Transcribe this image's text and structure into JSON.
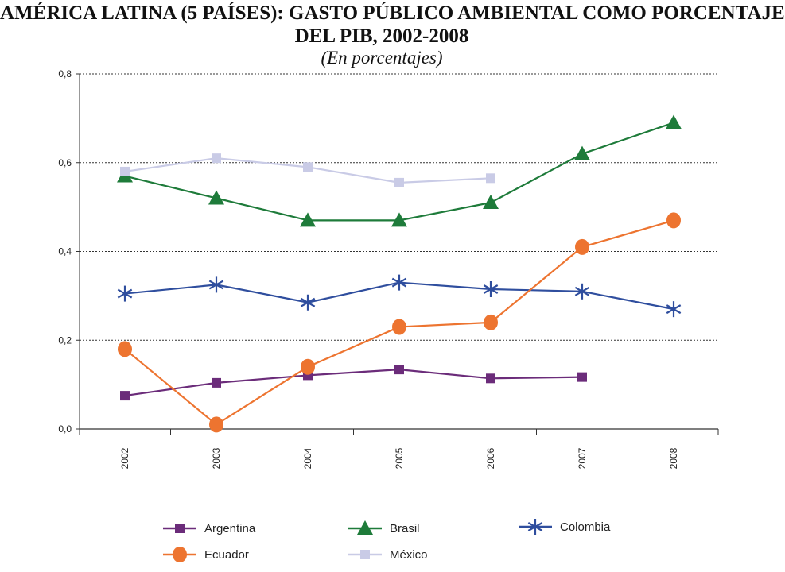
{
  "title": {
    "line1": "AMÉRICA LATINA (5 PAÍSES): GASTO PÚBLICO AMBIENTAL COMO PORCENTAJE",
    "line2": "DEL PIB, 2002-2008",
    "subtitle": "(En porcentajes)"
  },
  "chart_data": {
    "type": "line",
    "categories": [
      "2002",
      "2003",
      "2004",
      "2005",
      "2006",
      "2007",
      "2008"
    ],
    "ylim": [
      0,
      0.8
    ],
    "yticks": [
      0,
      0.2,
      0.4,
      0.6,
      0.8
    ],
    "ytick_labels": [
      "0,0",
      "0,2",
      "0,4",
      "0,6",
      "0,8"
    ],
    "grid": true,
    "grid_style": "dotted horizontal",
    "legend_position": "bottom",
    "series": [
      {
        "name": "Argentina",
        "color": "#6B2C7A",
        "marker": "square",
        "values": [
          0.075,
          0.104,
          0.121,
          0.134,
          0.114,
          0.117,
          null
        ]
      },
      {
        "name": "Brasil",
        "color": "#1E7B3A",
        "marker": "triangle",
        "values": [
          0.57,
          0.52,
          0.47,
          0.47,
          0.51,
          0.62,
          0.69
        ]
      },
      {
        "name": "Colombia",
        "color": "#2F4E9E",
        "marker": "asterisk",
        "values": [
          0.305,
          0.325,
          0.285,
          0.33,
          0.315,
          0.31,
          0.27
        ]
      },
      {
        "name": "Ecuador",
        "color": "#ED7430",
        "marker": "circle",
        "values": [
          0.18,
          0.01,
          0.14,
          0.23,
          0.24,
          0.41,
          0.47
        ]
      },
      {
        "name": "México",
        "color": "#C9CBE6",
        "marker": "square",
        "values": [
          0.58,
          0.61,
          0.59,
          0.555,
          0.565,
          null,
          null
        ]
      }
    ]
  }
}
